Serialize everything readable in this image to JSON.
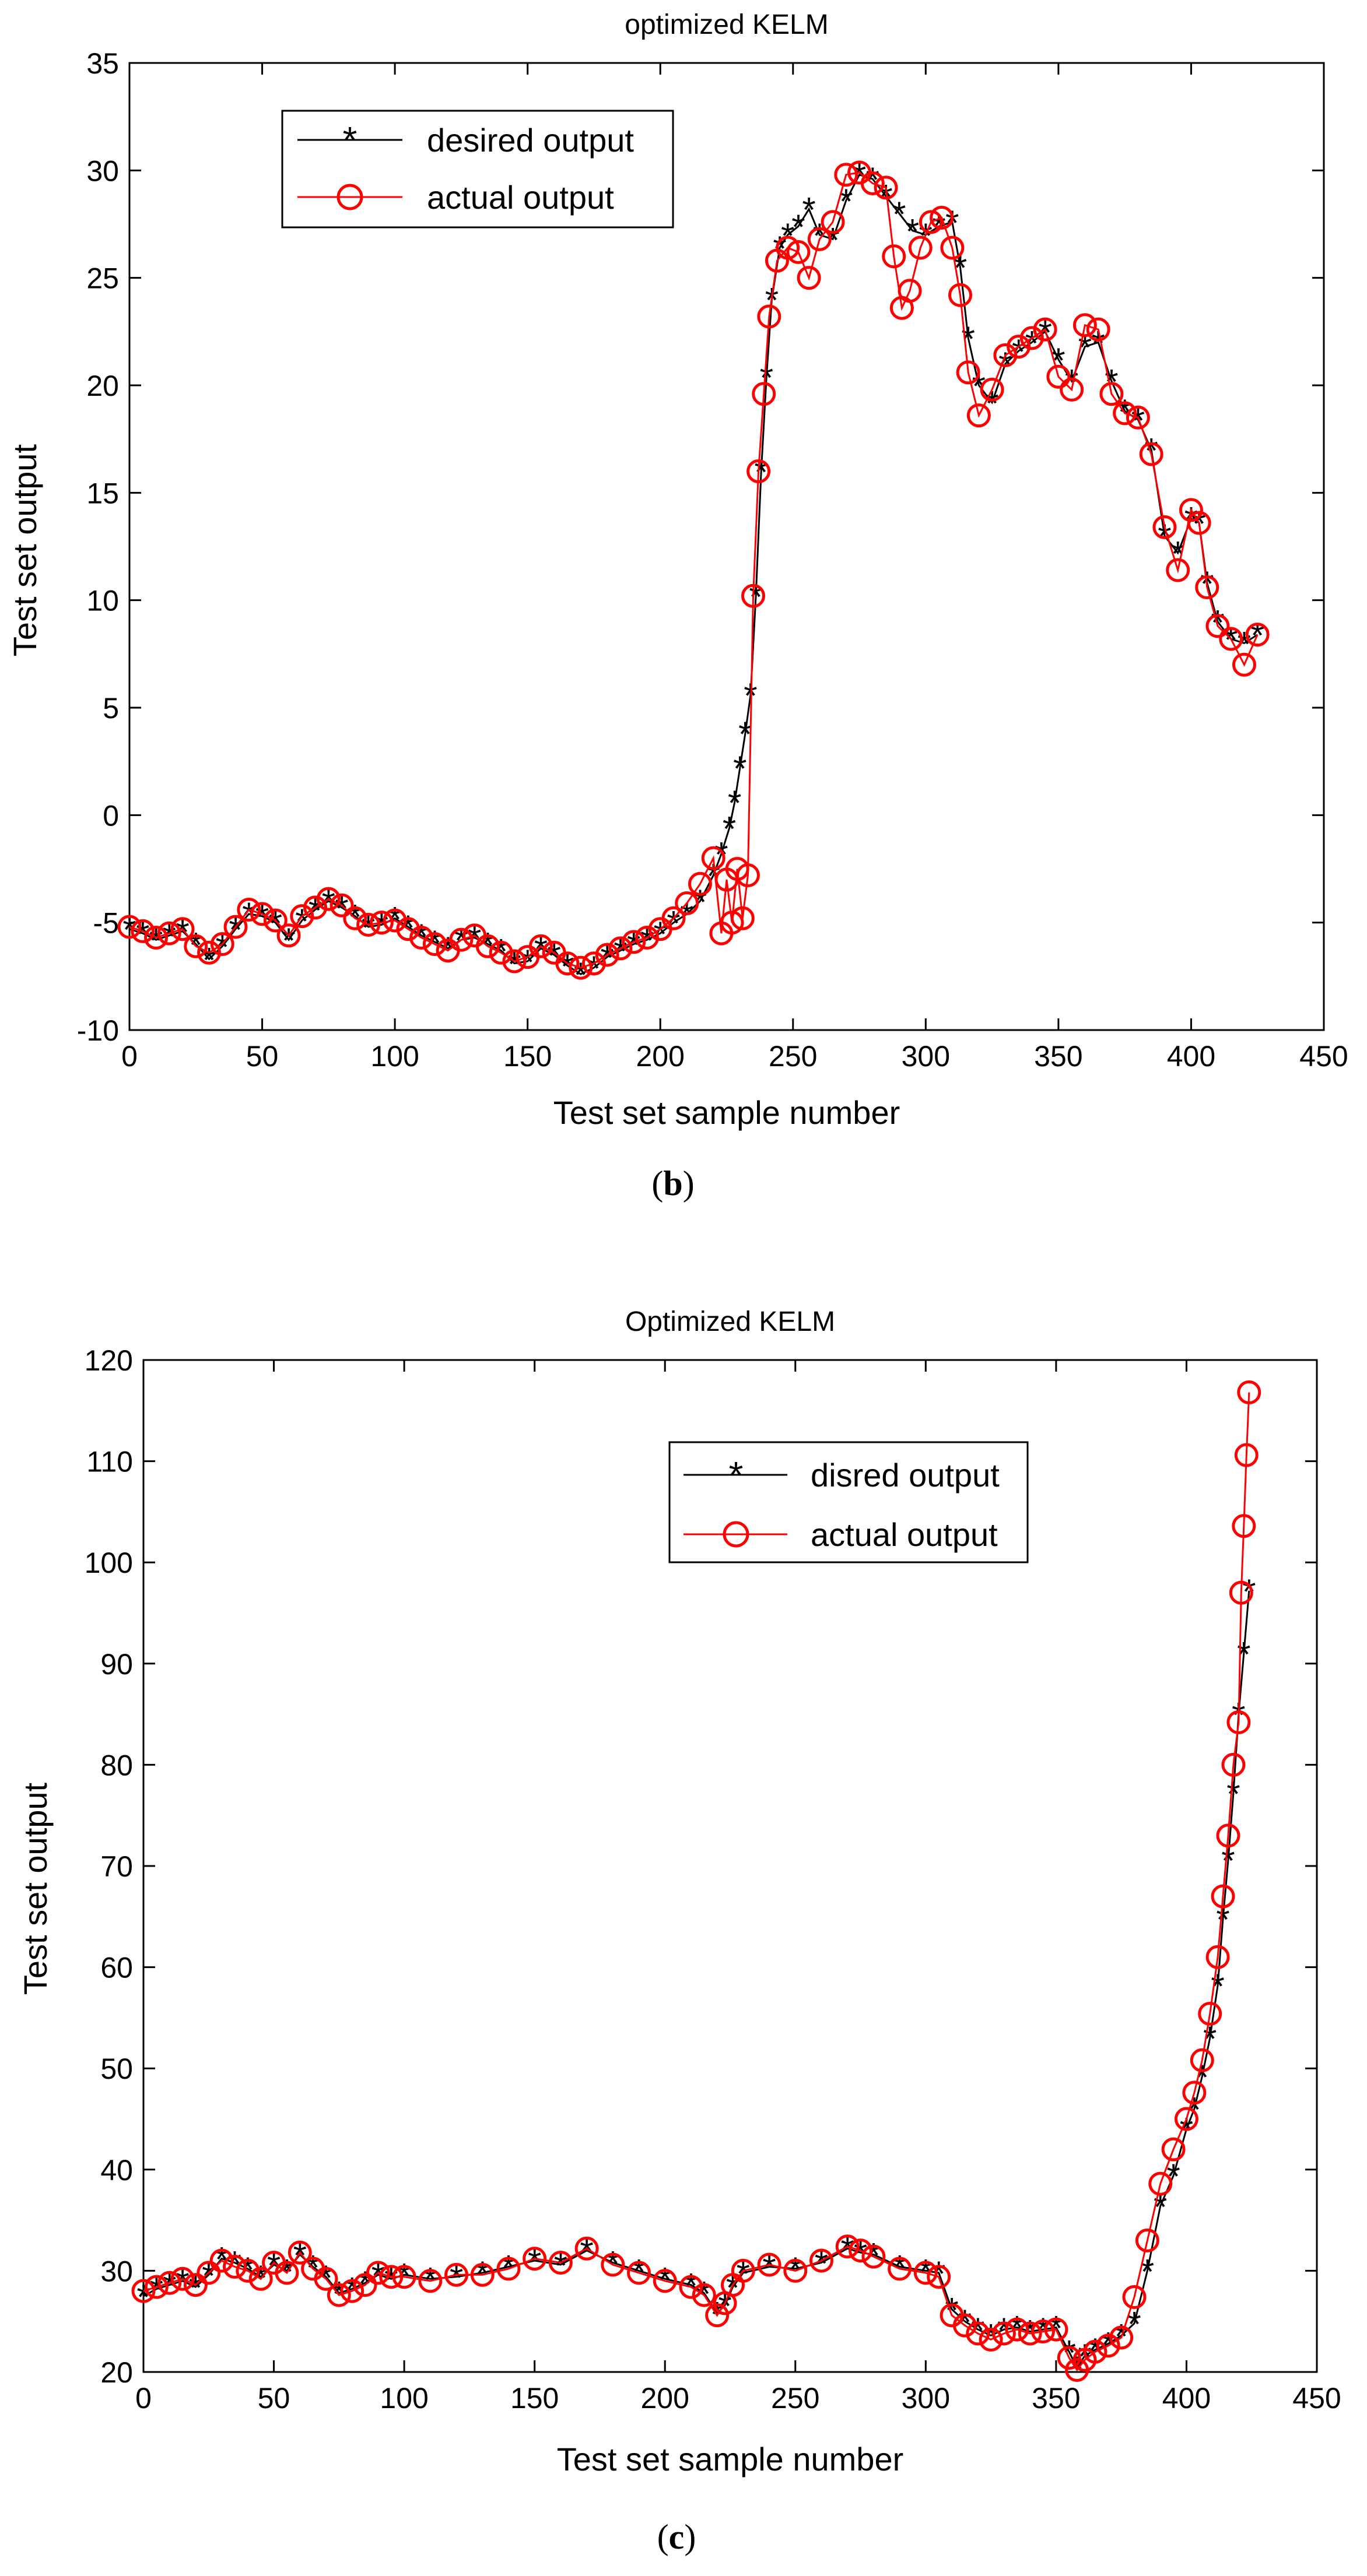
{
  "chart_data": [
    {
      "type": "line",
      "panel": "(b)",
      "title": "optimized KELM",
      "xlabel": "Test set sample number",
      "ylabel": "Test set output",
      "xlim": [
        0,
        450
      ],
      "ylim": [
        -10,
        35
      ],
      "xticks": [
        0,
        50,
        100,
        150,
        200,
        250,
        300,
        350,
        400,
        450
      ],
      "yticks": [
        -10,
        -5,
        0,
        5,
        10,
        15,
        20,
        25,
        30,
        35
      ],
      "grid": false,
      "legend_position": "top-left",
      "series": [
        {
          "name": "desired output",
          "color": "#000000",
          "marker": "asterisk",
          "x": [
            0,
            5,
            10,
            15,
            20,
            25,
            30,
            35,
            40,
            45,
            50,
            55,
            60,
            65,
            70,
            75,
            80,
            85,
            90,
            95,
            100,
            105,
            110,
            115,
            120,
            125,
            130,
            135,
            140,
            145,
            150,
            155,
            160,
            165,
            170,
            175,
            180,
            185,
            190,
            195,
            200,
            205,
            210,
            215,
            220,
            223,
            226,
            228,
            230,
            232,
            234,
            236,
            238,
            240,
            242,
            245,
            248,
            252,
            256,
            260,
            265,
            270,
            275,
            280,
            285,
            290,
            295,
            300,
            305,
            310,
            313,
            316,
            320,
            325,
            330,
            335,
            340,
            345,
            350,
            355,
            360,
            365,
            370,
            375,
            380,
            385,
            390,
            395,
            400,
            403,
            406,
            410,
            415,
            420,
            425
          ],
          "y": [
            -5.3,
            -5.5,
            -5.8,
            -5.6,
            -5.4,
            -6.0,
            -6.7,
            -6.1,
            -5.3,
            -4.6,
            -4.7,
            -5.0,
            -5.8,
            -4.9,
            -4.4,
            -4.0,
            -4.3,
            -4.7,
            -5.2,
            -5.1,
            -4.8,
            -5.2,
            -5.6,
            -5.9,
            -6.2,
            -5.8,
            -5.7,
            -6.0,
            -6.3,
            -6.9,
            -6.8,
            -6.2,
            -6.5,
            -7.0,
            -7.4,
            -7.1,
            -6.6,
            -6.3,
            -6.0,
            -5.8,
            -5.5,
            -5.0,
            -4.6,
            -4.0,
            -2.8,
            -1.8,
            -0.6,
            0.6,
            2.2,
            3.8,
            5.6,
            10.2,
            16.0,
            20.4,
            24.0,
            26.4,
            27.0,
            27.4,
            28.2,
            27.0,
            26.8,
            28.6,
            29.8,
            29.6,
            28.8,
            28.0,
            27.2,
            27.0,
            27.4,
            27.6,
            25.5,
            22.2,
            20.0,
            19.2,
            21.0,
            21.6,
            22.0,
            22.5,
            21.2,
            20.2,
            21.8,
            22.0,
            20.2,
            18.8,
            18.4,
            17.0,
            13.0,
            12.2,
            13.8,
            13.6,
            10.8,
            9.0,
            8.2,
            8.0,
            8.4
          ]
        },
        {
          "name": "actual output",
          "color": "#ff0000",
          "marker": "circle",
          "x": [
            0,
            5,
            10,
            15,
            20,
            25,
            30,
            35,
            40,
            45,
            50,
            55,
            60,
            65,
            70,
            75,
            80,
            85,
            90,
            95,
            100,
            105,
            110,
            115,
            120,
            125,
            130,
            135,
            140,
            145,
            150,
            155,
            160,
            165,
            170,
            175,
            180,
            185,
            190,
            195,
            200,
            205,
            210,
            215,
            220,
            223,
            225,
            227,
            229,
            231,
            233,
            235,
            237,
            239,
            241,
            244,
            248,
            252,
            256,
            260,
            265,
            270,
            275,
            280,
            285,
            288,
            291,
            294,
            298,
            302,
            306,
            310,
            313,
            316,
            320,
            325,
            330,
            335,
            340,
            345,
            350,
            355,
            360,
            365,
            370,
            375,
            380,
            385,
            390,
            395,
            400,
            403,
            406,
            410,
            415,
            420,
            425
          ],
          "y": [
            -5.2,
            -5.4,
            -5.7,
            -5.5,
            -5.3,
            -6.1,
            -6.4,
            -6.0,
            -5.2,
            -4.4,
            -4.6,
            -4.9,
            -5.6,
            -4.7,
            -4.3,
            -3.9,
            -4.2,
            -4.8,
            -5.1,
            -5.0,
            -4.9,
            -5.3,
            -5.7,
            -6.0,
            -6.3,
            -5.8,
            -5.6,
            -6.1,
            -6.4,
            -6.8,
            -6.6,
            -6.1,
            -6.4,
            -6.9,
            -7.1,
            -6.9,
            -6.5,
            -6.2,
            -5.9,
            -5.7,
            -5.3,
            -4.8,
            -4.1,
            -3.2,
            -2.0,
            -5.5,
            -3.0,
            -5.0,
            -2.5,
            -4.8,
            -2.8,
            10.2,
            16.0,
            19.6,
            23.2,
            25.8,
            26.4,
            26.2,
            25.0,
            26.8,
            27.6,
            29.8,
            29.9,
            29.4,
            29.2,
            26.0,
            23.6,
            24.4,
            26.4,
            27.6,
            27.8,
            26.4,
            24.2,
            20.6,
            18.6,
            19.8,
            21.4,
            21.8,
            22.2,
            22.6,
            20.4,
            19.8,
            22.8,
            22.6,
            19.6,
            18.7,
            18.5,
            16.8,
            13.4,
            11.4,
            14.2,
            13.6,
            10.6,
            8.8,
            8.2,
            7.0,
            8.4
          ]
        }
      ]
    },
    {
      "type": "line",
      "panel": "(c)",
      "title": "Optimized KELM",
      "xlabel": "Test set sample number",
      "ylabel": "Test set output",
      "xlim": [
        0,
        450
      ],
      "ylim": [
        20,
        120
      ],
      "xticks": [
        0,
        50,
        100,
        150,
        200,
        250,
        300,
        350,
        400,
        450
      ],
      "yticks": [
        20,
        30,
        40,
        50,
        60,
        70,
        80,
        90,
        100,
        110,
        120
      ],
      "grid": false,
      "legend_position": "top-right",
      "series": [
        {
          "name": "disred output",
          "color": "#000000",
          "marker": "asterisk",
          "x": [
            0,
            5,
            10,
            15,
            20,
            25,
            30,
            35,
            40,
            45,
            50,
            55,
            60,
            65,
            70,
            75,
            80,
            85,
            90,
            95,
            100,
            110,
            120,
            130,
            140,
            150,
            160,
            170,
            180,
            190,
            200,
            210,
            215,
            220,
            223,
            226,
            230,
            240,
            250,
            260,
            270,
            275,
            280,
            290,
            300,
            305,
            310,
            315,
            320,
            325,
            330,
            335,
            340,
            345,
            350,
            355,
            358,
            361,
            365,
            370,
            375,
            380,
            385,
            390,
            395,
            400,
            403,
            406,
            409,
            412,
            414,
            416,
            418,
            420,
            422,
            424
          ],
          "y": [
            27.5,
            28.2,
            28.6,
            29.0,
            28.4,
            29.6,
            31.2,
            30.8,
            30.2,
            29.4,
            30.6,
            30.0,
            31.6,
            30.4,
            29.4,
            27.8,
            28.2,
            28.8,
            29.6,
            29.2,
            29.6,
            29.2,
            29.4,
            29.8,
            30.4,
            31.0,
            30.6,
            32.0,
            30.8,
            30.0,
            29.2,
            28.6,
            27.8,
            25.8,
            26.6,
            28.4,
            29.8,
            30.4,
            30.2,
            30.8,
            32.2,
            31.8,
            31.6,
            30.4,
            30.0,
            29.8,
            26.2,
            25.0,
            24.2,
            23.6,
            24.2,
            24.4,
            24.0,
            24.2,
            24.4,
            22.0,
            20.4,
            21.6,
            22.2,
            22.8,
            23.6,
            24.8,
            30.0,
            36.4,
            39.4,
            44.0,
            46.0,
            49.2,
            53.0,
            58.2,
            64.8,
            70.6,
            77.2,
            85.0,
            91.0,
            97.2
          ]
        },
        {
          "name": "actual output",
          "color": "#ff0000",
          "marker": "circle",
          "x": [
            0,
            5,
            10,
            15,
            20,
            25,
            30,
            35,
            40,
            45,
            50,
            55,
            60,
            65,
            70,
            75,
            80,
            85,
            90,
            95,
            100,
            110,
            120,
            130,
            140,
            150,
            160,
            170,
            180,
            190,
            200,
            210,
            215,
            220,
            223,
            226,
            230,
            240,
            250,
            260,
            270,
            275,
            280,
            290,
            300,
            305,
            310,
            315,
            320,
            325,
            330,
            335,
            340,
            345,
            350,
            355,
            358,
            361,
            365,
            370,
            375,
            380,
            385,
            390,
            395,
            400,
            403,
            406,
            409,
            412,
            414,
            416,
            418,
            420,
            421,
            422,
            423,
            424
          ],
          "y": [
            28.0,
            28.4,
            28.8,
            29.2,
            28.6,
            29.8,
            31.0,
            30.4,
            30.0,
            29.2,
            30.8,
            29.8,
            31.8,
            30.2,
            29.2,
            27.6,
            28.0,
            28.6,
            29.8,
            29.4,
            29.4,
            29.0,
            29.6,
            29.6,
            30.2,
            31.2,
            30.8,
            32.2,
            30.6,
            29.8,
            29.0,
            28.4,
            27.6,
            25.6,
            26.8,
            28.6,
            30.0,
            30.6,
            30.0,
            31.0,
            32.4,
            32.0,
            31.4,
            30.2,
            29.8,
            29.4,
            25.6,
            24.6,
            23.8,
            23.2,
            23.8,
            24.2,
            23.8,
            24.0,
            24.2,
            21.4,
            20.2,
            21.2,
            22.0,
            22.6,
            23.4,
            27.4,
            33.0,
            38.6,
            42.0,
            45.0,
            47.6,
            50.8,
            55.4,
            61.0,
            67.0,
            73.0,
            80.0,
            84.2,
            97.0,
            103.6,
            110.6,
            116.8
          ]
        }
      ]
    }
  ],
  "captions": {
    "b": {
      "open": "(",
      "letter": "b",
      "close": ")"
    },
    "c": {
      "open": "(",
      "letter": "c",
      "close": ")"
    }
  },
  "colors": {
    "axis": "#000000",
    "desired": "#000000",
    "actual": "#ff0000"
  }
}
